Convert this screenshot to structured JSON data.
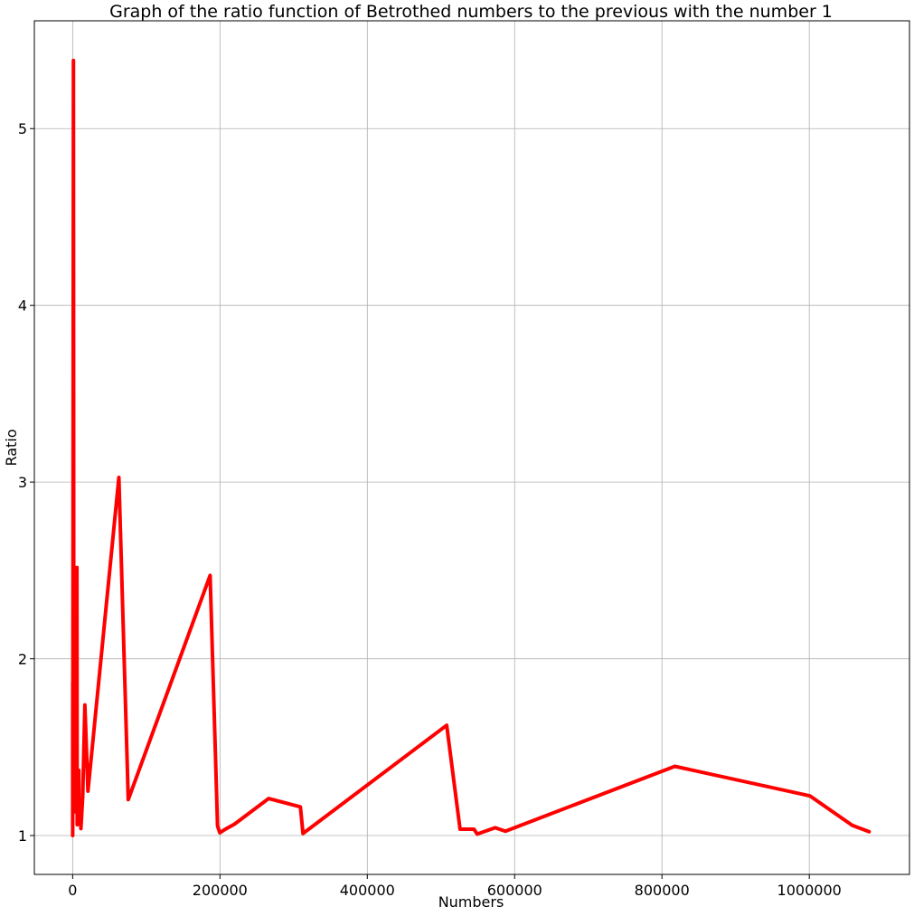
{
  "chart_data": {
    "type": "line",
    "title": "Graph of the ratio function of Betrothed numbers to the previous with the number 1",
    "xlabel": "Numbers",
    "ylabel": "Ratio",
    "xlim": [
      -52000,
      1136000
    ],
    "ylim": [
      0.78,
      5.61
    ],
    "xticks": [
      0,
      200000,
      400000,
      600000,
      800000,
      1000000
    ],
    "xtick_labels": [
      "0",
      "200000",
      "400000",
      "600000",
      "800000",
      "1000000"
    ],
    "yticks": [
      1,
      2,
      3,
      4,
      5
    ],
    "ytick_labels": [
      "1",
      "2",
      "3",
      "4",
      "5"
    ],
    "grid": true,
    "series": [
      {
        "color": "#ff0000",
        "x": [
          48,
          75,
          140,
          195,
          1050,
          1575,
          2024,
          2295,
          5775,
          6128,
          8384,
          8944,
          9975,
          10773,
          11195,
          13674,
          16575,
          20735,
          62744,
          75495,
          186615,
          196664,
          199760,
          206504,
          219975,
          266000,
          309135,
          312704,
          507759,
          525915,
          544784,
          549219,
          573560,
          587460,
          817479,
          1000824,
          1058315,
          1081184
        ],
        "y": [
          1,
          1.5625,
          1.8667,
          1.3929,
          5.3857,
          1.5,
          1.2851,
          1.1339,
          2.5163,
          1.0611,
          1.3682,
          1.0668,
          1.1153,
          1.08,
          1.0392,
          1.2215,
          1.7385,
          1.251,
          3.026,
          1.2032,
          2.4718,
          1.0539,
          1.0157,
          1.0338,
          1.0652,
          1.2092,
          1.1622,
          1.0115,
          1.6238,
          1.0358,
          1.0359,
          1.0081,
          1.0443,
          1.0242,
          1.3915,
          1.2243,
          1.0574,
          1.0216
        ]
      }
    ]
  }
}
